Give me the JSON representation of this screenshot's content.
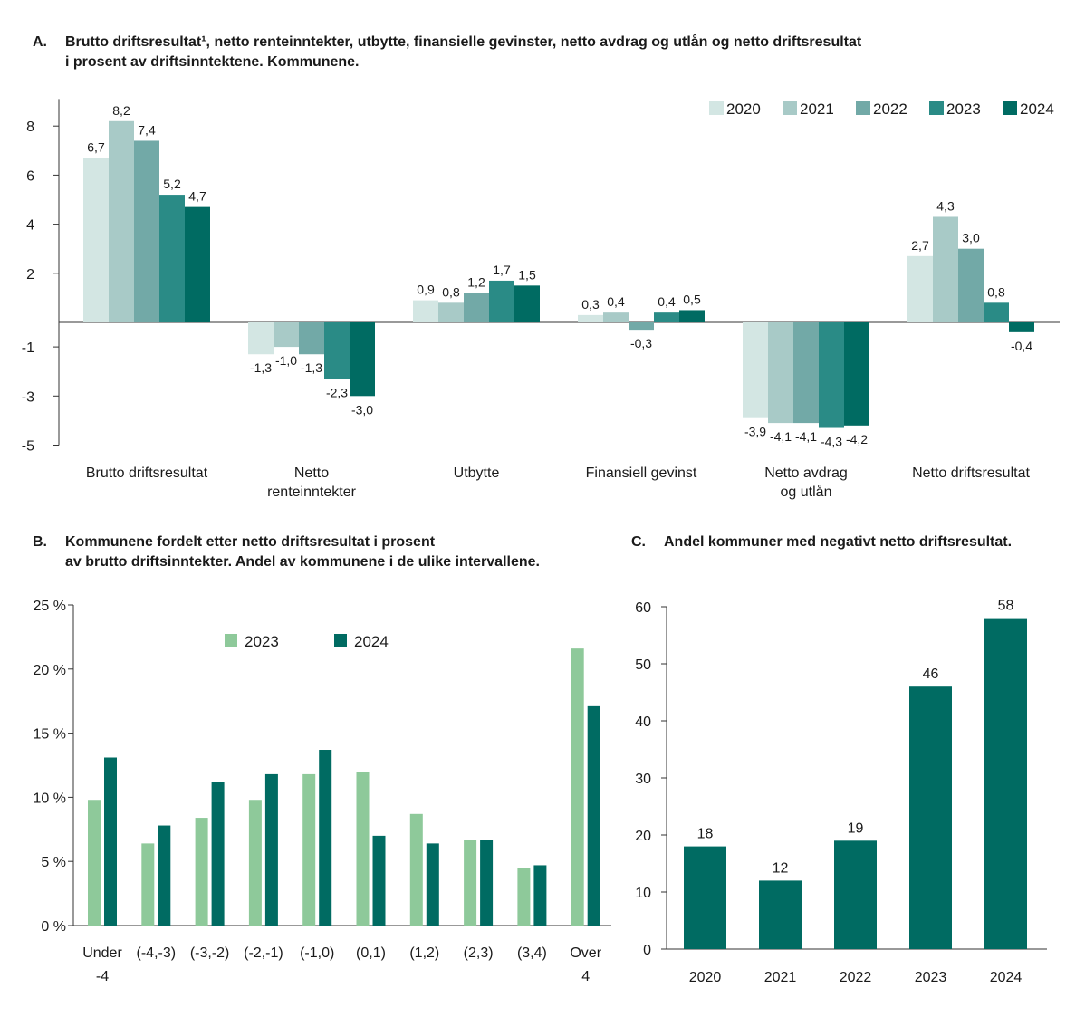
{
  "panelA": {
    "letter": "A.",
    "title_line1": "Brutto driftsresultat¹, netto renteinntekter, utbytte, finansielle gevinster, netto avdrag og utlån og netto driftsresultat",
    "title_line2": "i prosent av driftsinntektene. Kommunene.",
    "colors": [
      "#d3e6e3",
      "#a8cac7",
      "#72a9a7",
      "#2a8b86",
      "#006b62"
    ]
  },
  "panelB": {
    "letter": "B.",
    "title_line1": "Kommunene fordelt etter netto driftsresultat i prosent",
    "title_line2": "av brutto driftsinntekter. Andel av kommunene i de ulike intervallene.",
    "colors": [
      "#8ec99a",
      "#006b62"
    ]
  },
  "panelC": {
    "letter": "C.",
    "title_line1": "Andel kommuner med negativt netto driftsresultat.",
    "colors": [
      "#006b62"
    ]
  },
  "chart_data": [
    {
      "id": "A",
      "type": "bar",
      "categories": [
        "Brutto driftsresultat",
        "Netto|renteinntekter",
        "Utbytte",
        "Finansiell gevinst",
        "Netto avdrag|og utlån",
        "Netto driftsresultat"
      ],
      "series": [
        {
          "name": "2020",
          "values": [
            6.7,
            -1.3,
            0.9,
            0.3,
            -3.9,
            2.7
          ],
          "labels": [
            "6,7",
            "-1,3",
            "0,9",
            "0,3",
            "-3,9",
            "2,7"
          ]
        },
        {
          "name": "2021",
          "values": [
            8.2,
            -1.0,
            0.8,
            0.4,
            -4.1,
            4.3
          ],
          "labels": [
            "8,2",
            "-1,0",
            "0,8",
            "0,4",
            "-4,1",
            "4,3"
          ]
        },
        {
          "name": "2022",
          "values": [
            7.4,
            -1.3,
            1.2,
            -0.3,
            -4.1,
            3.0
          ],
          "labels": [
            "7,4",
            "-1,3",
            "1,2",
            "-0,3",
            "-4,1",
            "3,0"
          ]
        },
        {
          "name": "2023",
          "values": [
            5.2,
            -2.3,
            1.7,
            0.4,
            -4.3,
            0.8
          ],
          "labels": [
            "5,2",
            "-2,3",
            "1,7",
            "0,4",
            "-4,3",
            "0,8"
          ]
        },
        {
          "name": "2024",
          "values": [
            4.7,
            -3.0,
            1.5,
            0.5,
            -4.2,
            -0.4
          ],
          "labels": [
            "4,7",
            "-3,0",
            "1,5",
            "0,5",
            "-4,2",
            "-0,4"
          ]
        }
      ],
      "yticks": [
        8,
        6,
        4,
        2,
        -1,
        -3,
        -5
      ],
      "ylim": [
        -5,
        9
      ],
      "legend": "top-right"
    },
    {
      "id": "B",
      "type": "bar",
      "categories": [
        "Under|-4",
        "(-4,-3)",
        "(-3,-2)",
        "(-2,-1)",
        "(-1,0)",
        "(0,1)",
        "(1,2)",
        "(2,3)",
        "(3,4)",
        "Over|4"
      ],
      "series": [
        {
          "name": "2023",
          "values": [
            9.8,
            6.4,
            8.4,
            9.8,
            11.8,
            12.0,
            8.7,
            6.7,
            4.5,
            21.6
          ]
        },
        {
          "name": "2024",
          "values": [
            13.1,
            7.8,
            11.2,
            11.8,
            13.7,
            7.0,
            6.4,
            6.7,
            4.7,
            17.1
          ]
        }
      ],
      "yticks": [
        0,
        5,
        10,
        15,
        20,
        25
      ],
      "ytick_labels": [
        "0 %",
        "5 %",
        "10 %",
        "15 %",
        "20 %",
        "25 %"
      ],
      "ylim": [
        0,
        25
      ],
      "legend": "top-center"
    },
    {
      "id": "C",
      "type": "bar",
      "categories": [
        "2020",
        "2021",
        "2022",
        "2023",
        "2024"
      ],
      "values": [
        18,
        12,
        19,
        46,
        58
      ],
      "labels": [
        "18",
        "12",
        "19",
        "46",
        "58"
      ],
      "yticks": [
        0,
        10,
        20,
        30,
        40,
        50,
        60
      ],
      "ylim": [
        0,
        60
      ]
    }
  ]
}
